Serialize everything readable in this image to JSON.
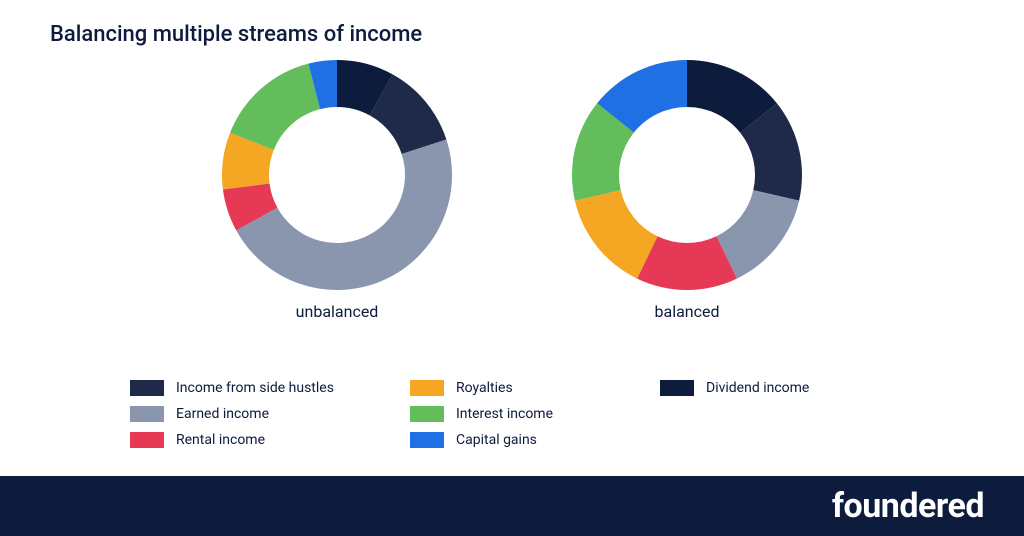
{
  "title": "Balancing multiple streams of income",
  "title_color": "#0d1b3d",
  "title_fontsize": 22,
  "background_color": "#ffffff",
  "footer": {
    "background_color": "#0d1b3d",
    "brand_text": "foundered",
    "brand_color": "#ffffff",
    "brand_fontsize": 34
  },
  "series_colors": {
    "side_hustles": "#1f2a4a",
    "earned_income": "#8a96ad",
    "rental_income": "#e63955",
    "royalties": "#f5a623",
    "interest_income": "#62bd5a",
    "capital_gains": "#1f6fe5",
    "dividend_income": "#0d1b3d"
  },
  "charts": {
    "unbalanced": {
      "type": "donut",
      "caption": "unbalanced",
      "text_color": "#0d1b3d",
      "outer_radius": 115,
      "inner_radius": 68,
      "segments": [
        {
          "key": "dividend_income",
          "value": 8
        },
        {
          "key": "side_hustles",
          "value": 12
        },
        {
          "key": "earned_income",
          "value": 47
        },
        {
          "key": "rental_income",
          "value": 6
        },
        {
          "key": "royalties",
          "value": 8
        },
        {
          "key": "interest_income",
          "value": 15
        },
        {
          "key": "capital_gains",
          "value": 4
        }
      ]
    },
    "balanced": {
      "type": "donut",
      "caption": "balanced",
      "text_color": "#0d1b3d",
      "outer_radius": 115,
      "inner_radius": 68,
      "segments": [
        {
          "key": "dividend_income",
          "value": 14.3
        },
        {
          "key": "side_hustles",
          "value": 14.3
        },
        {
          "key": "earned_income",
          "value": 14.3
        },
        {
          "key": "rental_income",
          "value": 14.3
        },
        {
          "key": "royalties",
          "value": 14.3
        },
        {
          "key": "interest_income",
          "value": 14.3
        },
        {
          "key": "capital_gains",
          "value": 14.3
        }
      ]
    }
  },
  "legend": {
    "text_color": "#0d1b3d",
    "columns": [
      [
        {
          "key": "side_hustles",
          "label": "Income from side hustles"
        },
        {
          "key": "earned_income",
          "label": "Earned income"
        },
        {
          "key": "rental_income",
          "label": "Rental income"
        }
      ],
      [
        {
          "key": "royalties",
          "label": "Royalties"
        },
        {
          "key": "interest_income",
          "label": "Interest income"
        },
        {
          "key": "capital_gains",
          "label": "Capital gains"
        }
      ],
      [
        {
          "key": "dividend_income",
          "label": "Dividend income"
        }
      ]
    ]
  }
}
